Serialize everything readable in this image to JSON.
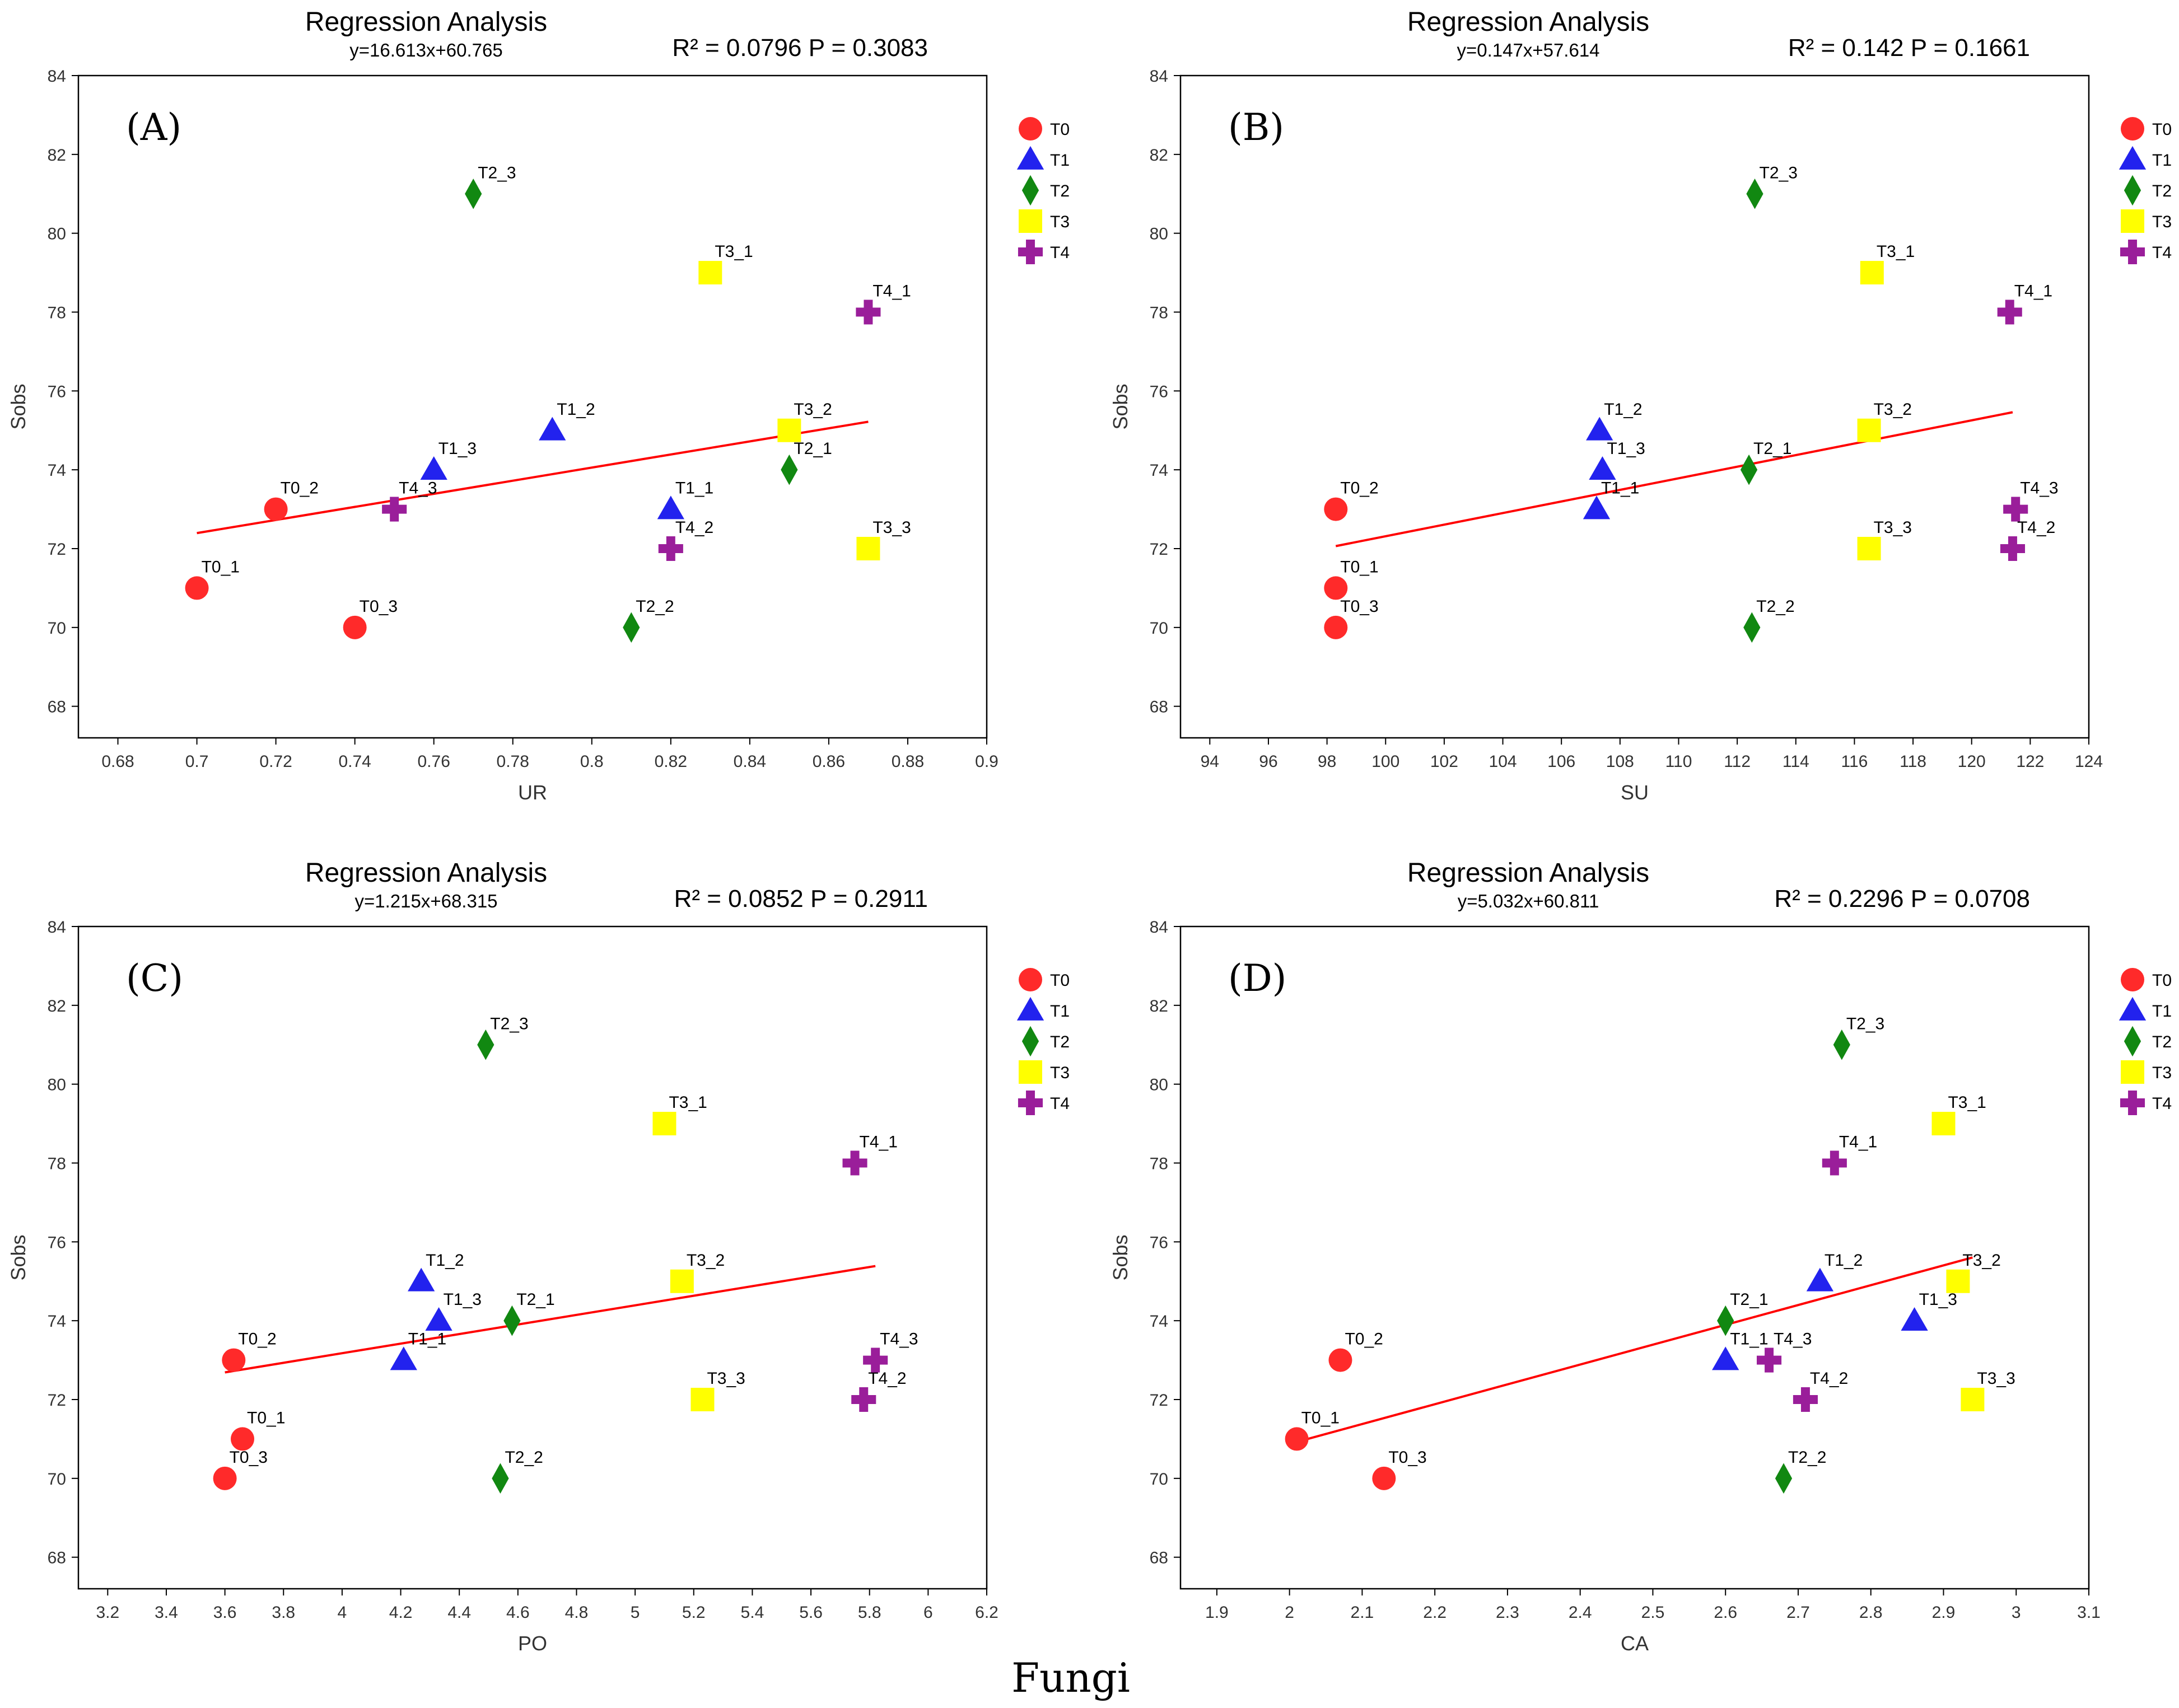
{
  "figure_caption": "Fungi",
  "colors": {
    "T0": "#ff2a2a",
    "T1": "#2222ee",
    "T2": "#118811",
    "T3": "#ffff00",
    "T4": "#9a1e9a",
    "fit_line": "#ff0000"
  },
  "legend": [
    {
      "label": "T0",
      "marker": "circle"
    },
    {
      "label": "T1",
      "marker": "triangle"
    },
    {
      "label": "T2",
      "marker": "diamond"
    },
    {
      "label": "T3",
      "marker": "square"
    },
    {
      "label": "T4",
      "marker": "plus"
    }
  ],
  "chart_data": [
    {
      "type": "scatter",
      "panel": "(A)",
      "title": "Regression Analysis",
      "equation": "y=16.613x+60.765",
      "stats": "R² = 0.0796   P = 0.3083",
      "xlabel": "UR",
      "ylabel": "Sobs",
      "xlim": [
        0.67,
        0.9
      ],
      "ylim": [
        67.2,
        84
      ],
      "xticks": [
        "0.68",
        "0.7",
        "0.72",
        "0.74",
        "0.76",
        "0.78",
        "0.8",
        "0.82",
        "0.84",
        "0.86",
        "0.88",
        "0.9"
      ],
      "yticks": [
        "68",
        "70",
        "72",
        "74",
        "76",
        "78",
        "80",
        "82",
        "84"
      ],
      "fit": {
        "slope": 16.613,
        "intercept": 60.765,
        "x_range": [
          0.7,
          0.87
        ]
      },
      "points": [
        {
          "label": "T0_1",
          "group": "T0",
          "x": 0.7,
          "y": 71
        },
        {
          "label": "T0_2",
          "group": "T0",
          "x": 0.72,
          "y": 73
        },
        {
          "label": "T0_3",
          "group": "T0",
          "x": 0.74,
          "y": 70
        },
        {
          "label": "T1_1",
          "group": "T1",
          "x": 0.82,
          "y": 73
        },
        {
          "label": "T1_2",
          "group": "T1",
          "x": 0.79,
          "y": 75
        },
        {
          "label": "T1_3",
          "group": "T1",
          "x": 0.76,
          "y": 74
        },
        {
          "label": "T2_1",
          "group": "T2",
          "x": 0.85,
          "y": 74
        },
        {
          "label": "T2_2",
          "group": "T2",
          "x": 0.81,
          "y": 70
        },
        {
          "label": "T2_3",
          "group": "T2",
          "x": 0.77,
          "y": 81
        },
        {
          "label": "T3_1",
          "group": "T3",
          "x": 0.83,
          "y": 79
        },
        {
          "label": "T3_2",
          "group": "T3",
          "x": 0.85,
          "y": 75
        },
        {
          "label": "T3_3",
          "group": "T3",
          "x": 0.87,
          "y": 72
        },
        {
          "label": "T4_1",
          "group": "T4",
          "x": 0.87,
          "y": 78
        },
        {
          "label": "T4_2",
          "group": "T4",
          "x": 0.82,
          "y": 72
        },
        {
          "label": "T4_3",
          "group": "T4",
          "x": 0.75,
          "y": 73
        }
      ]
    },
    {
      "type": "scatter",
      "panel": "(B)",
      "title": "Regression Analysis",
      "equation": "y=0.147x+57.614",
      "stats": "R² = 0.142    P = 0.1661",
      "xlabel": "SU",
      "ylabel": "Sobs",
      "xlim": [
        93,
        124
      ],
      "ylim": [
        67.2,
        84
      ],
      "xticks": [
        "94",
        "96",
        "98",
        "100",
        "102",
        "104",
        "106",
        "108",
        "110",
        "112",
        "114",
        "116",
        "118",
        "120",
        "122",
        "124"
      ],
      "yticks": [
        "68",
        "70",
        "72",
        "74",
        "76",
        "78",
        "80",
        "82",
        "84"
      ],
      "fit": {
        "slope": 0.147,
        "intercept": 57.614,
        "x_range": [
          98.3,
          121.4
        ]
      },
      "points": [
        {
          "label": "T0_1",
          "group": "T0",
          "x": 98.3,
          "y": 71
        },
        {
          "label": "T0_2",
          "group": "T0",
          "x": 98.3,
          "y": 73
        },
        {
          "label": "T0_3",
          "group": "T0",
          "x": 98.3,
          "y": 70
        },
        {
          "label": "T1_1",
          "group": "T1",
          "x": 107.2,
          "y": 73
        },
        {
          "label": "T1_2",
          "group": "T1",
          "x": 107.3,
          "y": 75
        },
        {
          "label": "T1_3",
          "group": "T1",
          "x": 107.4,
          "y": 74
        },
        {
          "label": "T2_1",
          "group": "T2",
          "x": 112.4,
          "y": 74
        },
        {
          "label": "T2_2",
          "group": "T2",
          "x": 112.5,
          "y": 70
        },
        {
          "label": "T2_3",
          "group": "T2",
          "x": 112.6,
          "y": 81
        },
        {
          "label": "T3_1",
          "group": "T3",
          "x": 116.6,
          "y": 79
        },
        {
          "label": "T3_2",
          "group": "T3",
          "x": 116.5,
          "y": 75
        },
        {
          "label": "T3_3",
          "group": "T3",
          "x": 116.5,
          "y": 72
        },
        {
          "label": "T4_1",
          "group": "T4",
          "x": 121.3,
          "y": 78
        },
        {
          "label": "T4_2",
          "group": "T4",
          "x": 121.4,
          "y": 72
        },
        {
          "label": "T4_3",
          "group": "T4",
          "x": 121.5,
          "y": 73
        }
      ]
    },
    {
      "type": "scatter",
      "panel": "(C)",
      "title": "Regression Analysis",
      "equation": "y=1.215x+68.315",
      "stats": "R² = 0.0852   P = 0.2911",
      "xlabel": "PO",
      "ylabel": "Sobs",
      "xlim": [
        3.1,
        6.2
      ],
      "ylim": [
        67.2,
        84
      ],
      "xticks": [
        "3.2",
        "3.4",
        "3.6",
        "3.8",
        "4",
        "4.2",
        "4.4",
        "4.6",
        "4.8",
        "5",
        "5.2",
        "5.4",
        "5.6",
        "5.8",
        "6",
        "6.2"
      ],
      "yticks": [
        "68",
        "70",
        "72",
        "74",
        "76",
        "78",
        "80",
        "82",
        "84"
      ],
      "fit": {
        "slope": 1.215,
        "intercept": 68.315,
        "x_range": [
          3.6,
          5.82
        ]
      },
      "points": [
        {
          "label": "T0_1",
          "group": "T0",
          "x": 3.66,
          "y": 71
        },
        {
          "label": "T0_2",
          "group": "T0",
          "x": 3.63,
          "y": 73
        },
        {
          "label": "T0_3",
          "group": "T0",
          "x": 3.6,
          "y": 70
        },
        {
          "label": "T1_1",
          "group": "T1",
          "x": 4.21,
          "y": 73
        },
        {
          "label": "T1_2",
          "group": "T1",
          "x": 4.27,
          "y": 75
        },
        {
          "label": "T1_3",
          "group": "T1",
          "x": 4.33,
          "y": 74
        },
        {
          "label": "T2_1",
          "group": "T2",
          "x": 4.58,
          "y": 74
        },
        {
          "label": "T2_2",
          "group": "T2",
          "x": 4.54,
          "y": 70
        },
        {
          "label": "T2_3",
          "group": "T2",
          "x": 4.49,
          "y": 81
        },
        {
          "label": "T3_1",
          "group": "T3",
          "x": 5.1,
          "y": 79
        },
        {
          "label": "T3_2",
          "group": "T3",
          "x": 5.16,
          "y": 75
        },
        {
          "label": "T3_3",
          "group": "T3",
          "x": 5.23,
          "y": 72
        },
        {
          "label": "T4_1",
          "group": "T4",
          "x": 5.75,
          "y": 78
        },
        {
          "label": "T4_2",
          "group": "T4",
          "x": 5.78,
          "y": 72
        },
        {
          "label": "T4_3",
          "group": "T4",
          "x": 5.82,
          "y": 73
        }
      ]
    },
    {
      "type": "scatter",
      "panel": "(D)",
      "title": "Regression Analysis",
      "equation": "y=5.032x+60.811",
      "stats": "R² = 0.2296   P = 0.0708",
      "xlabel": "CA",
      "ylabel": "Sobs",
      "xlim": [
        1.85,
        3.1
      ],
      "ylim": [
        67.2,
        84
      ],
      "xticks": [
        "1.9",
        "2",
        "2.1",
        "2.2",
        "2.3",
        "2.4",
        "2.5",
        "2.6",
        "2.7",
        "2.8",
        "2.9",
        "3",
        "3.1"
      ],
      "yticks": [
        "68",
        "70",
        "72",
        "74",
        "76",
        "78",
        "80",
        "82",
        "84"
      ],
      "fit": {
        "slope": 5.032,
        "intercept": 60.811,
        "x_range": [
          2.01,
          2.94
        ]
      },
      "points": [
        {
          "label": "T0_1",
          "group": "T0",
          "x": 2.01,
          "y": 71
        },
        {
          "label": "T0_2",
          "group": "T0",
          "x": 2.07,
          "y": 73
        },
        {
          "label": "T0_3",
          "group": "T0",
          "x": 2.13,
          "y": 70
        },
        {
          "label": "T1_1",
          "group": "T1",
          "x": 2.6,
          "y": 73
        },
        {
          "label": "T1_2",
          "group": "T1",
          "x": 2.73,
          "y": 75
        },
        {
          "label": "T1_3",
          "group": "T1",
          "x": 2.86,
          "y": 74
        },
        {
          "label": "T2_1",
          "group": "T2",
          "x": 2.6,
          "y": 74
        },
        {
          "label": "T2_2",
          "group": "T2",
          "x": 2.68,
          "y": 70
        },
        {
          "label": "T2_3",
          "group": "T2",
          "x": 2.76,
          "y": 81
        },
        {
          "label": "T3_1",
          "group": "T3",
          "x": 2.9,
          "y": 79
        },
        {
          "label": "T3_2",
          "group": "T3",
          "x": 2.92,
          "y": 75
        },
        {
          "label": "T3_3",
          "group": "T3",
          "x": 2.94,
          "y": 72
        },
        {
          "label": "T4_1",
          "group": "T4",
          "x": 2.75,
          "y": 78
        },
        {
          "label": "T4_2",
          "group": "T4",
          "x": 2.71,
          "y": 72
        },
        {
          "label": "T4_3",
          "group": "T4",
          "x": 2.66,
          "y": 73
        }
      ]
    }
  ]
}
